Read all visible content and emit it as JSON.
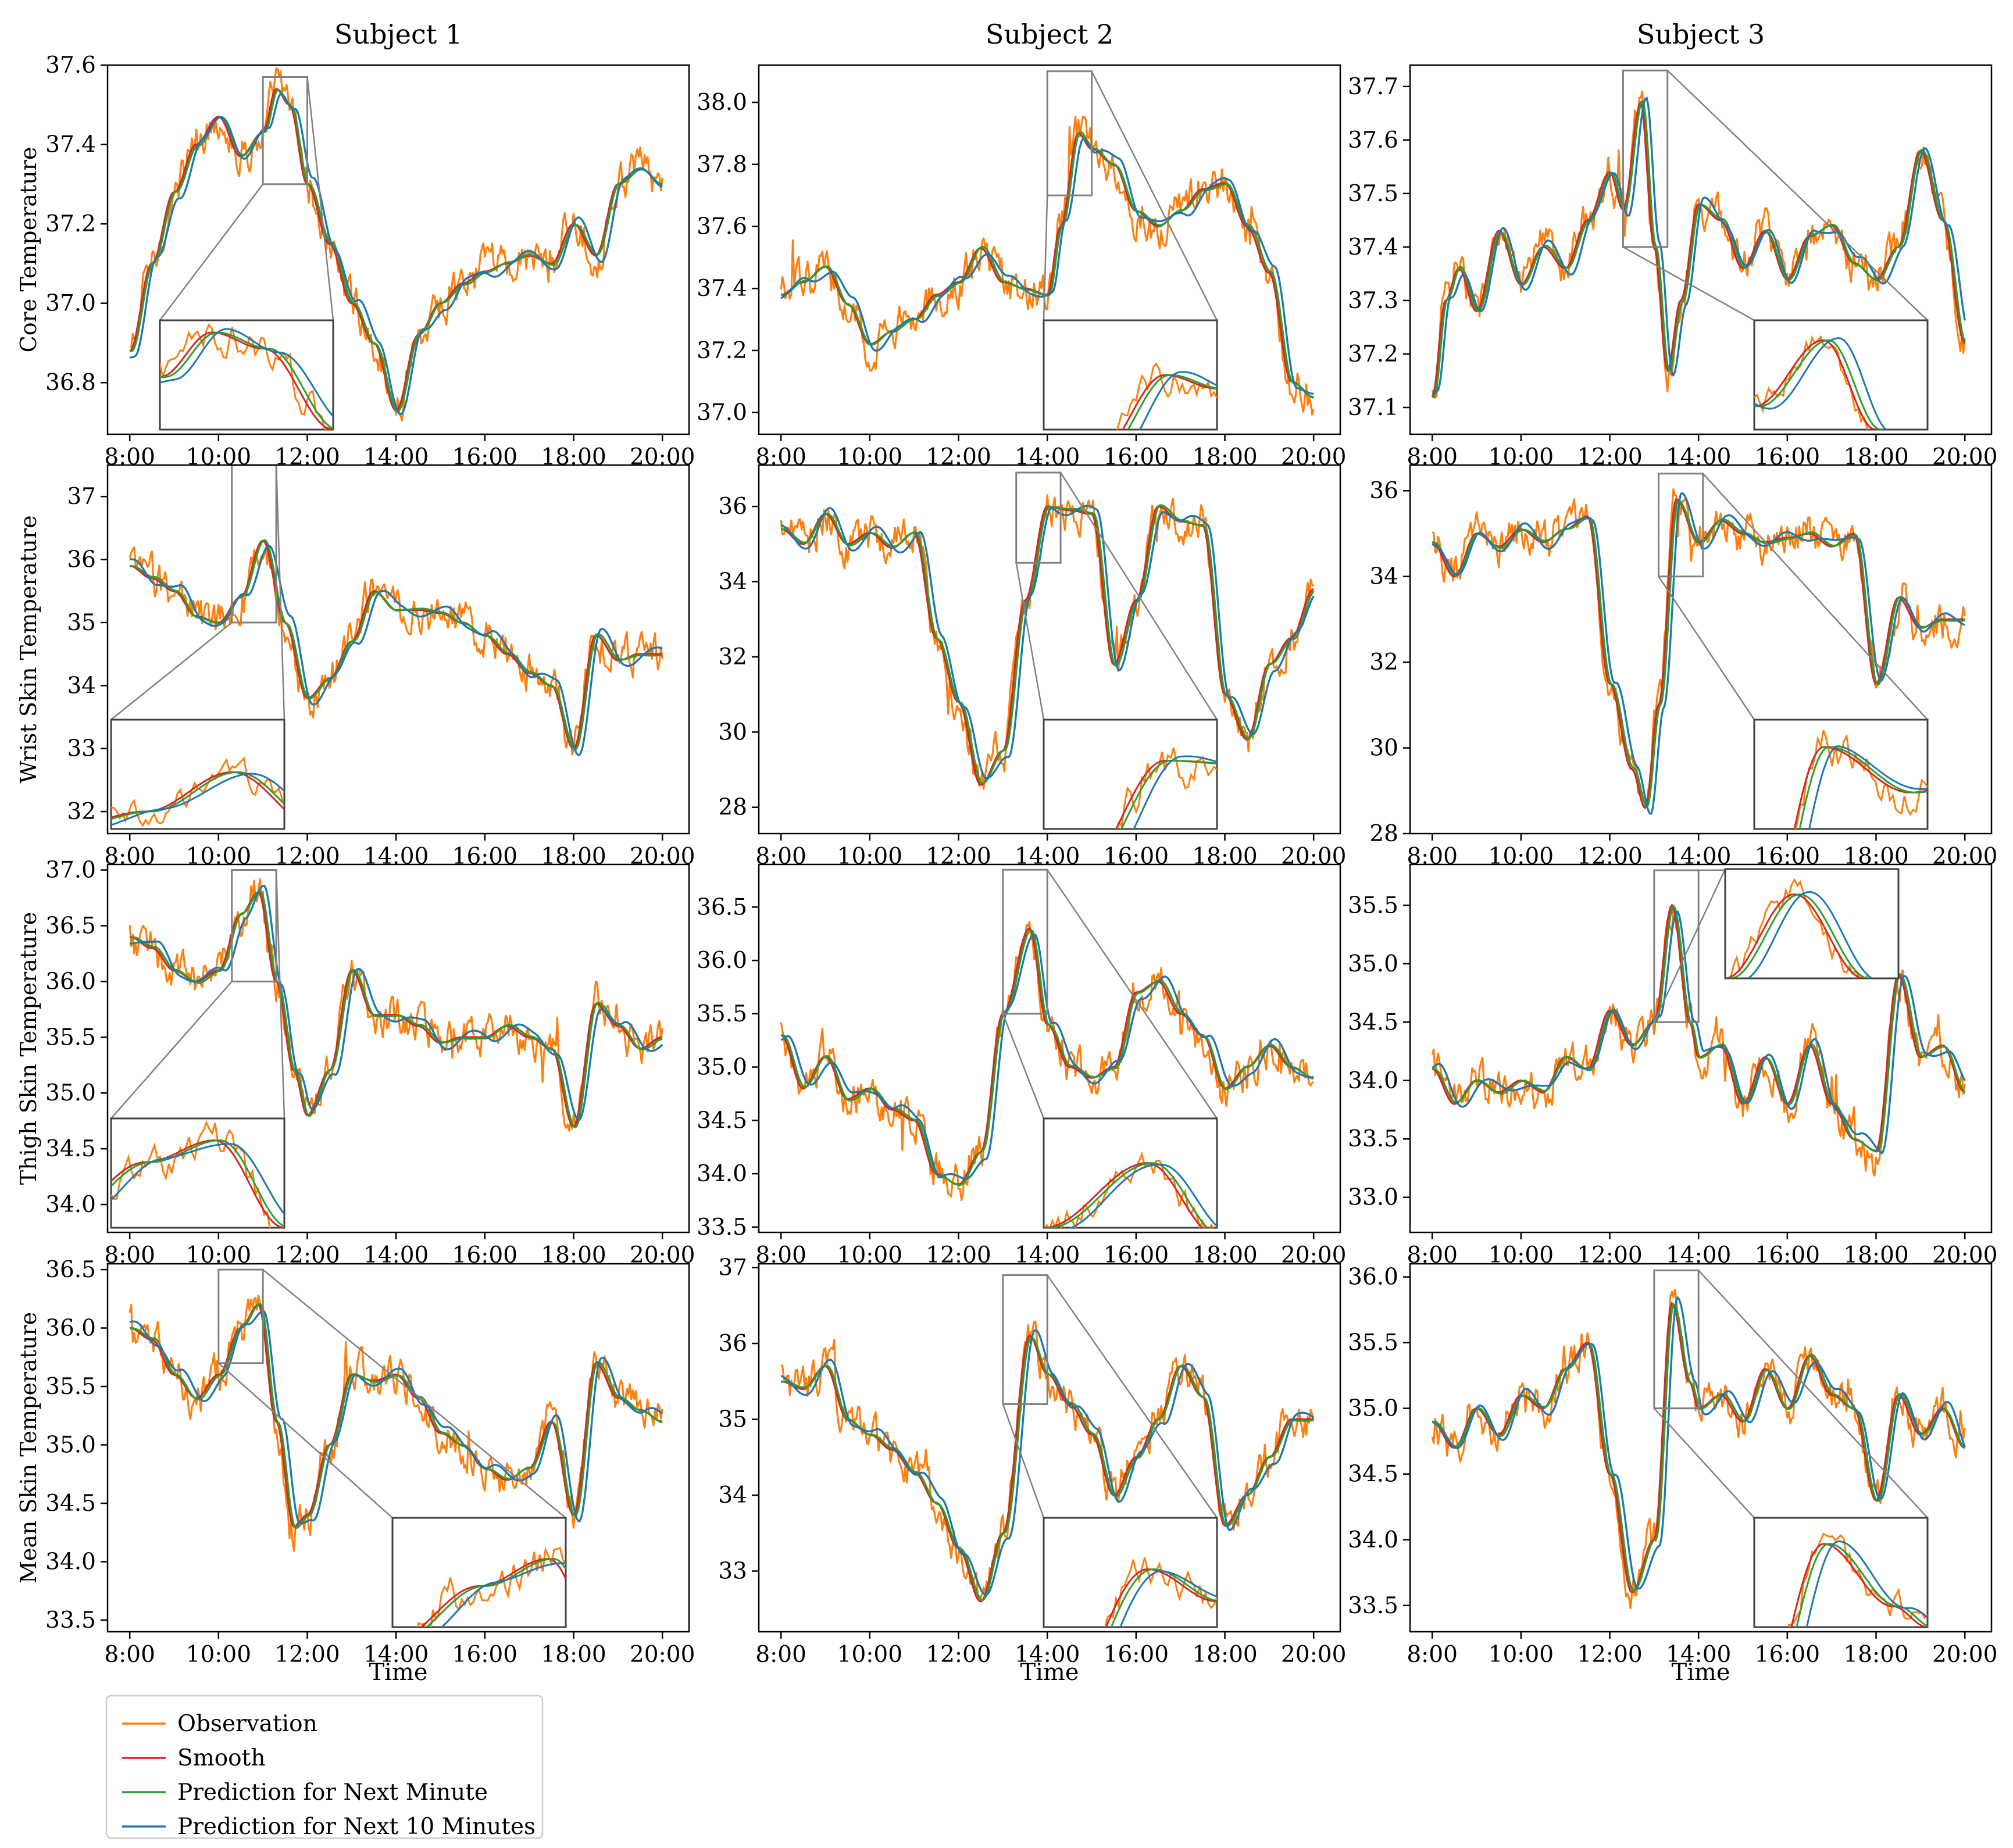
{
  "figure": {
    "subject_titles": [
      "Subject 1",
      "Subject 2",
      "Subject 3"
    ],
    "row_ylabels": [
      "Core Temperature",
      "Wrist Skin Temperature",
      "Thigh Skin Temperature",
      "Mean Skin Temperature"
    ],
    "xlabel": "Time",
    "x_ticks": [
      "8:00",
      "10:00",
      "12:00",
      "14:00",
      "16:00",
      "18:00",
      "20:00"
    ],
    "x_tick_hours": [
      8,
      10,
      12,
      14,
      16,
      18,
      20
    ],
    "x_range_hours": [
      7.5,
      20.6
    ]
  },
  "legend": {
    "placement": "bottom-left",
    "entries": [
      {
        "label": "Observation",
        "color": "#ff7f0e"
      },
      {
        "label": "Smooth",
        "color": "#d62728"
      },
      {
        "label": "Prediction for Next Minute",
        "color": "#2ca02c"
      },
      {
        "label": "Prediction for Next 10 Minutes",
        "color": "#1f77b4"
      }
    ]
  },
  "chart_data": [
    {
      "type": "line",
      "row": 0,
      "col": 0,
      "subject": "Subject 1",
      "ylabel": "Core Temperature",
      "ylim": [
        36.67,
        37.6
      ],
      "y_ticks": [
        "36.8",
        "37.0",
        "37.2",
        "37.4",
        "37.6"
      ],
      "y_tick_values": [
        36.8,
        37.0,
        37.2,
        37.4,
        37.6
      ],
      "x": [
        8,
        8.5,
        9,
        9.5,
        10,
        10.5,
        11,
        11.3,
        11.6,
        12,
        12.5,
        13,
        13.5,
        14,
        14.5,
        15,
        15.5,
        16,
        16.5,
        17,
        17.5,
        18,
        18.5,
        19,
        19.5,
        20
      ],
      "smooth": [
        36.88,
        37.1,
        37.28,
        37.4,
        37.47,
        37.37,
        37.43,
        37.54,
        37.5,
        37.3,
        37.15,
        37.0,
        36.9,
        36.73,
        36.92,
        37.0,
        37.05,
        37.08,
        37.1,
        37.12,
        37.1,
        37.2,
        37.12,
        37.3,
        37.34,
        37.3
      ],
      "inset": {
        "box_x": [
          11.0,
          12.0
        ],
        "box_y": [
          37.3,
          37.57
        ],
        "corner": "lower-left"
      }
    },
    {
      "type": "line",
      "row": 0,
      "col": 1,
      "subject": "Subject 2",
      "ylabel": "",
      "ylim": [
        36.93,
        38.12
      ],
      "y_ticks": [
        "37.0",
        "37.2",
        "37.4",
        "37.6",
        "37.8",
        "38.0"
      ],
      "y_tick_values": [
        37.0,
        37.2,
        37.4,
        37.6,
        37.8,
        38.0
      ],
      "x": [
        8,
        8.5,
        9,
        9.5,
        10,
        10.5,
        11,
        11.5,
        12,
        12.5,
        13,
        13.5,
        14,
        14.3,
        14.7,
        15,
        15.5,
        16,
        16.5,
        17,
        17.5,
        18,
        18.5,
        19,
        19.5,
        20
      ],
      "smooth": [
        37.38,
        37.42,
        37.47,
        37.35,
        37.22,
        37.26,
        37.3,
        37.38,
        37.42,
        37.53,
        37.42,
        37.4,
        37.38,
        37.6,
        37.9,
        37.85,
        37.8,
        37.65,
        37.6,
        37.65,
        37.72,
        37.74,
        37.6,
        37.45,
        37.1,
        37.05
      ],
      "inset": {
        "box_x": [
          14.0,
          15.0
        ],
        "box_y": [
          37.7,
          38.1
        ],
        "corner": "lower-right"
      }
    },
    {
      "type": "line",
      "row": 0,
      "col": 2,
      "subject": "Subject 3",
      "ylabel": "",
      "ylim": [
        37.05,
        37.74
      ],
      "y_ticks": [
        "37.1",
        "37.2",
        "37.3",
        "37.4",
        "37.5",
        "37.6",
        "37.7"
      ],
      "y_tick_values": [
        37.1,
        37.2,
        37.3,
        37.4,
        37.5,
        37.6,
        37.7
      ],
      "x": [
        8,
        8.3,
        8.6,
        9,
        9.5,
        10,
        10.5,
        11,
        11.5,
        12,
        12.3,
        12.7,
        13,
        13.3,
        13.6,
        14,
        14.5,
        15,
        15.5,
        16,
        16.5,
        17,
        17.5,
        18,
        18.5,
        19,
        19.5,
        20
      ],
      "smooth": [
        37.12,
        37.3,
        37.36,
        37.28,
        37.43,
        37.33,
        37.4,
        37.36,
        37.45,
        37.54,
        37.47,
        37.67,
        37.4,
        37.17,
        37.3,
        37.48,
        37.45,
        37.36,
        37.43,
        37.34,
        37.42,
        37.44,
        37.37,
        37.34,
        37.4,
        37.58,
        37.45,
        37.22
      ],
      "inset": {
        "box_x": [
          12.3,
          13.3
        ],
        "box_y": [
          37.4,
          37.73
        ],
        "corner": "lower-right"
      }
    },
    {
      "type": "line",
      "row": 1,
      "col": 0,
      "subject": "Subject 1",
      "ylabel": "Wrist Skin Temperature",
      "ylim": [
        31.65,
        37.5
      ],
      "y_ticks": [
        "32",
        "33",
        "34",
        "35",
        "36",
        "37"
      ],
      "y_tick_values": [
        32,
        33,
        34,
        35,
        36,
        37
      ],
      "x": [
        8,
        8.5,
        9,
        9.5,
        10,
        10.5,
        11,
        11.5,
        12,
        12.5,
        13,
        13.5,
        14,
        14.5,
        15,
        15.5,
        16,
        16.5,
        17,
        17.5,
        18,
        18.5,
        19,
        19.5,
        20
      ],
      "smooth": [
        35.9,
        35.7,
        35.5,
        35.1,
        35.0,
        35.4,
        36.3,
        35.0,
        33.8,
        34.1,
        34.7,
        35.5,
        35.2,
        35.2,
        35.15,
        35.0,
        34.8,
        34.5,
        34.2,
        34.0,
        33.0,
        34.8,
        34.4,
        34.5,
        34.5
      ],
      "inset": {
        "box_x": [
          10.3,
          11.3
        ],
        "box_y": [
          35.0,
          37.5
        ],
        "corner": "lower-left"
      }
    },
    {
      "type": "line",
      "row": 1,
      "col": 1,
      "subject": "Subject 2",
      "ylabel": "",
      "ylim": [
        27.3,
        37.1
      ],
      "y_ticks": [
        "28",
        "30",
        "32",
        "34",
        "36"
      ],
      "y_tick_values": [
        28,
        30,
        32,
        34,
        36
      ],
      "x": [
        8,
        8.5,
        9,
        9.5,
        10,
        10.5,
        11,
        11.5,
        12,
        12.5,
        13,
        13.5,
        14,
        14.5,
        15,
        15.5,
        16,
        16.5,
        17,
        17.5,
        18,
        18.5,
        19,
        19.5,
        20
      ],
      "smooth": [
        35.4,
        35.0,
        35.8,
        35.0,
        35.3,
        34.9,
        35.3,
        32.5,
        30.8,
        28.6,
        29.5,
        33.5,
        36.0,
        35.9,
        35.8,
        31.8,
        33.5,
        36.0,
        35.6,
        35.5,
        31.0,
        29.8,
        31.8,
        32.5,
        33.8
      ],
      "inset": {
        "box_x": [
          13.3,
          14.3
        ],
        "box_y": [
          34.5,
          36.9
        ],
        "corner": "lower-right"
      }
    },
    {
      "type": "line",
      "row": 1,
      "col": 2,
      "subject": "Subject 3",
      "ylabel": "",
      "ylim": [
        28.0,
        36.6
      ],
      "y_ticks": [
        "28",
        "30",
        "32",
        "34",
        "36"
      ],
      "y_tick_values": [
        28,
        30,
        32,
        34,
        36
      ],
      "x": [
        8,
        8.5,
        9,
        9.5,
        10,
        10.5,
        11,
        11.5,
        12,
        12.5,
        12.8,
        13.1,
        13.5,
        14,
        14.5,
        15,
        15.5,
        16,
        16.5,
        17,
        17.5,
        18,
        18.5,
        19,
        19.5,
        20
      ],
      "smooth": [
        34.8,
        34.0,
        35.0,
        34.7,
        35.1,
        34.8,
        35.1,
        35.4,
        31.5,
        29.5,
        28.6,
        31.0,
        35.8,
        34.8,
        35.3,
        35.0,
        34.8,
        34.9,
        35.0,
        34.7,
        35.0,
        31.5,
        33.5,
        32.8,
        33.0,
        33.0
      ],
      "inset": {
        "box_x": [
          13.1,
          14.1
        ],
        "box_y": [
          34.0,
          36.4
        ],
        "corner": "lower-right"
      }
    },
    {
      "type": "line",
      "row": 2,
      "col": 0,
      "subject": "Subject 1",
      "ylabel": "Thigh Skin Temperature",
      "ylim": [
        33.75,
        37.05
      ],
      "y_ticks": [
        "34.0",
        "34.5",
        "35.0",
        "35.5",
        "36.0",
        "36.5",
        "37.0"
      ],
      "y_tick_values": [
        34.0,
        34.5,
        35.0,
        35.5,
        36.0,
        36.5,
        37.0
      ],
      "x": [
        8,
        8.5,
        9,
        9.5,
        10,
        10.5,
        10.9,
        11.3,
        11.7,
        12,
        12.5,
        13,
        13.5,
        14,
        14.5,
        15,
        15.5,
        16,
        16.5,
        17,
        17.5,
        18,
        18.5,
        19,
        19.5,
        20
      ],
      "smooth": [
        36.4,
        36.3,
        36.1,
        36.0,
        36.1,
        36.6,
        36.8,
        36.0,
        35.2,
        34.8,
        35.2,
        36.1,
        35.7,
        35.7,
        35.6,
        35.45,
        35.5,
        35.5,
        35.6,
        35.5,
        35.4,
        34.7,
        35.8,
        35.6,
        35.4,
        35.5
      ],
      "inset": {
        "box_x": [
          10.3,
          11.3
        ],
        "box_y": [
          36.0,
          37.0
        ],
        "corner": "lower-left"
      }
    },
    {
      "type": "line",
      "row": 2,
      "col": 1,
      "subject": "Subject 2",
      "ylabel": "",
      "ylim": [
        33.45,
        36.9
      ],
      "y_ticks": [
        "33.5",
        "34.0",
        "34.5",
        "35.0",
        "35.5",
        "36.0",
        "36.5"
      ],
      "y_tick_values": [
        33.5,
        34.0,
        34.5,
        35.0,
        35.5,
        36.0,
        36.5
      ],
      "x": [
        8,
        8.5,
        9,
        9.5,
        10,
        10.5,
        11,
        11.5,
        12,
        12.5,
        13,
        13.6,
        14,
        14.5,
        15,
        15.5,
        16,
        16.5,
        17,
        17.5,
        18,
        18.5,
        19,
        19.5,
        20
      ],
      "smooth": [
        35.3,
        34.8,
        35.1,
        34.7,
        34.8,
        34.6,
        34.5,
        34.0,
        33.9,
        34.2,
        35.5,
        36.3,
        35.4,
        35.0,
        34.9,
        35.0,
        35.7,
        35.8,
        35.5,
        35.3,
        34.8,
        35.0,
        35.2,
        35.0,
        34.9
      ],
      "inset": {
        "box_x": [
          13.0,
          14.0
        ],
        "box_y": [
          35.5,
          36.85
        ],
        "corner": "lower-right"
      }
    },
    {
      "type": "line",
      "row": 2,
      "col": 2,
      "subject": "Subject 3",
      "ylabel": "",
      "ylim": [
        32.7,
        35.85
      ],
      "y_ticks": [
        "33.0",
        "33.5",
        "34.0",
        "34.5",
        "35.0",
        "35.5"
      ],
      "y_tick_values": [
        33.0,
        33.5,
        34.0,
        34.5,
        35.0,
        35.5
      ],
      "x": [
        8,
        8.5,
        9,
        9.5,
        10,
        10.5,
        11,
        11.5,
        12,
        12.5,
        13,
        13.4,
        13.8,
        14,
        14.5,
        15,
        15.5,
        16,
        16.5,
        17,
        17.5,
        18,
        18.5,
        19,
        19.5,
        20
      ],
      "smooth": [
        34.1,
        33.8,
        34.0,
        33.9,
        34.0,
        33.9,
        34.2,
        34.1,
        34.6,
        34.3,
        34.5,
        35.5,
        34.5,
        34.2,
        34.3,
        33.8,
        34.2,
        33.8,
        34.3,
        33.8,
        33.5,
        33.4,
        34.9,
        34.2,
        34.3,
        33.9
      ],
      "inset": {
        "box_x": [
          13.0,
          14.0
        ],
        "box_y": [
          34.5,
          35.8
        ],
        "corner": "upper-right"
      }
    },
    {
      "type": "line",
      "row": 3,
      "col": 0,
      "subject": "Subject 1",
      "ylabel": "Mean Skin Temperature",
      "ylim": [
        33.4,
        36.55
      ],
      "y_ticks": [
        "33.5",
        "34.0",
        "34.5",
        "35.0",
        "35.5",
        "36.0",
        "36.5"
      ],
      "y_tick_values": [
        33.5,
        34.0,
        34.5,
        35.0,
        35.5,
        36.0,
        36.5
      ],
      "x": [
        8,
        8.5,
        9,
        9.5,
        10,
        10.5,
        10.9,
        11.3,
        11.7,
        12,
        12.5,
        13,
        13.5,
        14,
        14.5,
        15,
        15.5,
        16,
        16.5,
        17,
        17.5,
        18,
        18.5,
        19,
        19.5,
        20
      ],
      "smooth": [
        36.0,
        35.9,
        35.6,
        35.4,
        35.6,
        36.0,
        36.2,
        35.2,
        34.3,
        34.4,
        35.0,
        35.6,
        35.55,
        35.6,
        35.4,
        35.1,
        35.0,
        34.8,
        34.7,
        34.8,
        35.2,
        34.4,
        35.7,
        35.4,
        35.3,
        35.2
      ],
      "inset": {
        "box_x": [
          10.0,
          11.0
        ],
        "box_y": [
          35.7,
          36.5
        ],
        "corner": "lower-right"
      }
    },
    {
      "type": "line",
      "row": 3,
      "col": 1,
      "subject": "Subject 2",
      "ylabel": "",
      "ylim": [
        32.2,
        37.05
      ],
      "y_ticks": [
        "33",
        "34",
        "35",
        "36",
        "37"
      ],
      "y_tick_values": [
        33,
        34,
        35,
        36,
        37
      ],
      "x": [
        8,
        8.5,
        9,
        9.5,
        10,
        10.5,
        11,
        11.5,
        12,
        12.5,
        13,
        13.6,
        14,
        14.5,
        15,
        15.5,
        16,
        16.5,
        17,
        17.5,
        18,
        18.5,
        19,
        19.5,
        20
      ],
      "smooth": [
        35.5,
        35.4,
        35.7,
        35.0,
        34.8,
        34.6,
        34.3,
        33.9,
        33.3,
        32.6,
        33.5,
        36.1,
        35.6,
        35.2,
        34.8,
        34.0,
        34.5,
        35.0,
        35.7,
        35.3,
        33.6,
        34.0,
        34.5,
        35.0,
        35.0
      ],
      "inset": {
        "box_x": [
          13.0,
          14.0
        ],
        "box_y": [
          35.2,
          36.9
        ],
        "corner": "lower-right"
      }
    },
    {
      "type": "line",
      "row": 3,
      "col": 2,
      "subject": "Subject 3",
      "ylabel": "",
      "ylim": [
        33.3,
        36.1
      ],
      "y_ticks": [
        "33.5",
        "34.0",
        "34.5",
        "35.0",
        "35.5",
        "36.0"
      ],
      "y_tick_values": [
        33.5,
        34.0,
        34.5,
        35.0,
        35.5,
        36.0
      ],
      "x": [
        8,
        8.5,
        9,
        9.5,
        10,
        10.5,
        11,
        11.5,
        12,
        12.5,
        13,
        13.4,
        13.8,
        14,
        14.5,
        15,
        15.5,
        16,
        16.5,
        17,
        17.5,
        18,
        18.5,
        19,
        19.5,
        20
      ],
      "smooth": [
        34.9,
        34.7,
        35.0,
        34.8,
        35.1,
        35.0,
        35.3,
        35.5,
        34.5,
        33.6,
        34.0,
        35.8,
        35.2,
        35.0,
        35.1,
        34.9,
        35.3,
        35.0,
        35.4,
        35.1,
        35.0,
        34.3,
        35.1,
        34.8,
        35.0,
        34.7
      ],
      "inset": {
        "box_x": [
          13.0,
          14.0
        ],
        "box_y": [
          35.0,
          36.05
        ],
        "corner": "lower-right"
      }
    }
  ]
}
